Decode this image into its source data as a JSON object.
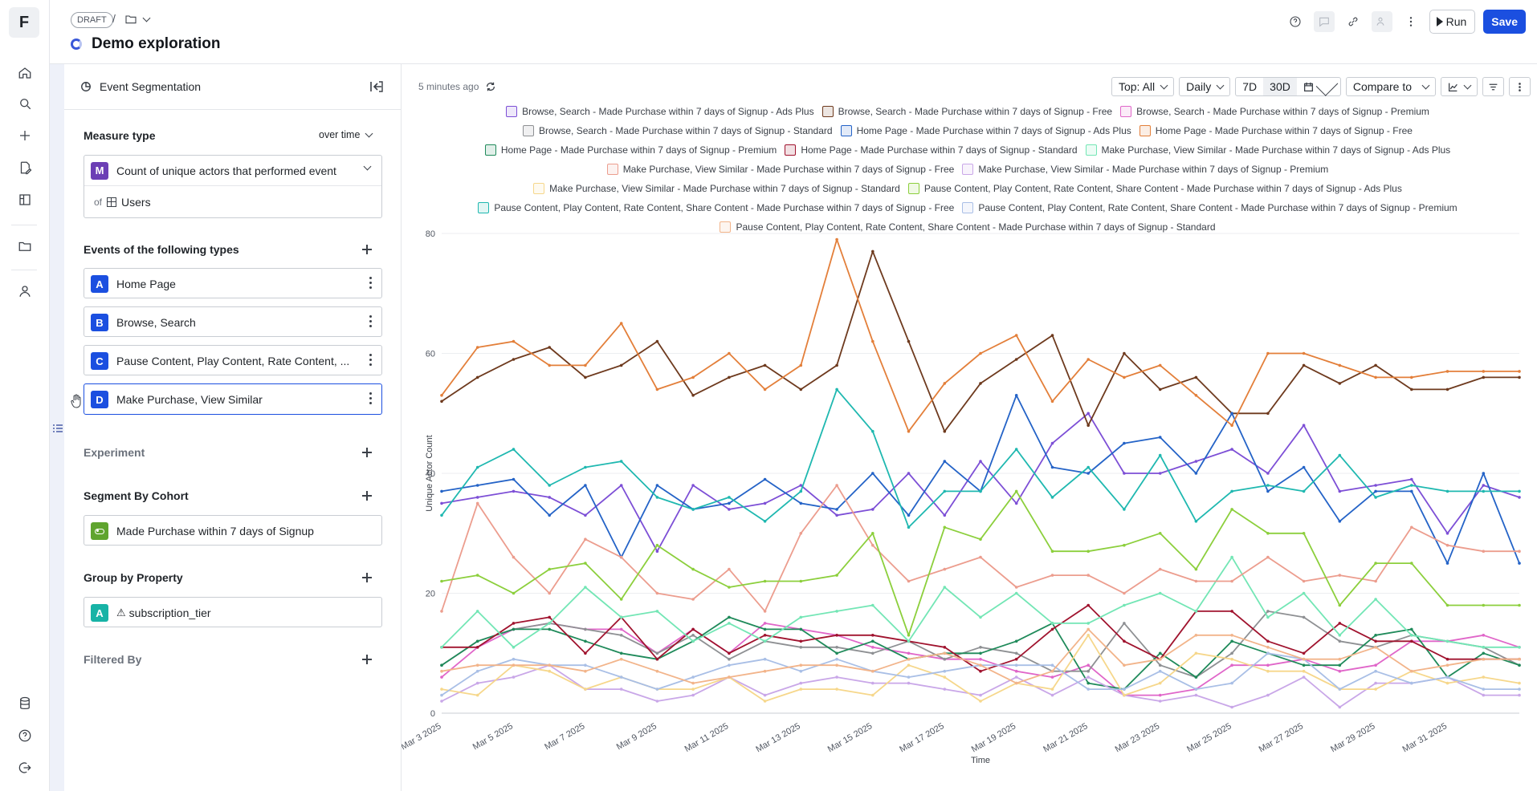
{
  "app": {
    "logo": "F"
  },
  "rail": {
    "icons": [
      "home-icon",
      "search-icon",
      "plus-icon",
      "edit-query-icon",
      "flask-icon",
      "folder-icon",
      "user-icon",
      "database-icon",
      "help-icon",
      "logout-icon"
    ]
  },
  "header": {
    "status": "DRAFT",
    "breadcrumb_sep": "/",
    "title": "Demo exploration",
    "run_label": "Run",
    "save_label": "Save"
  },
  "query": {
    "panel_title": "Event Segmentation",
    "measure_title": "Measure type",
    "measure_mode": "over time",
    "measure_badge": "M",
    "measure_value": "Count of unique actors that performed event",
    "of_label": "of",
    "of_value": "Users",
    "events_title": "Events of the following types",
    "events": [
      {
        "badge": "A",
        "label": "Home Page"
      },
      {
        "badge": "B",
        "label": "Browse, Search"
      },
      {
        "badge": "C",
        "label": "Pause Content, Play Content, Rate Content, ..."
      },
      {
        "badge": "D",
        "label": "Make Purchase, View Similar"
      }
    ],
    "experiment_title": "Experiment",
    "segment_title": "Segment By Cohort",
    "segment_value": "Made Purchase within 7 days of Signup",
    "group_title": "Group by Property",
    "group_badge": "A",
    "group_value": "subscription_tier",
    "filter_title": "Filtered By"
  },
  "chart_controls": {
    "updated": "5 minutes ago",
    "top": "Top: All",
    "interval": "Daily",
    "range_7d": "7D",
    "range_30d": "30D",
    "compare": "Compare to"
  },
  "chart_data": {
    "type": "line",
    "ylabel": "Unique Actor Count",
    "xlabel": "Time",
    "ylim": [
      0,
      80
    ],
    "yticks": [
      0,
      20,
      40,
      60,
      80
    ],
    "xticks": [
      "Mar 3 2025",
      "Mar 5 2025",
      "Mar 7 2025",
      "Mar 9 2025",
      "Mar 11 2025",
      "Mar 13 2025",
      "Mar 15 2025",
      "Mar 17 2025",
      "Mar 19 2025",
      "Mar 21 2025",
      "Mar 23 2025",
      "Mar 25 2025",
      "Mar 27 2025",
      "Mar 29 2025",
      "Mar 31 2025"
    ],
    "x_start": "2025-03-03",
    "x_end": "2025-03-31",
    "grid": true,
    "legend": "top-center",
    "series": [
      {
        "name": "Browse, Search - Made Purchase within 7 days of Signup - Ads Plus",
        "color": "#7d4fd6",
        "values": [
          35,
          36,
          37,
          36,
          33,
          38,
          27,
          38,
          34,
          35,
          38,
          33,
          34,
          40,
          33,
          42,
          35,
          45,
          50,
          40,
          40,
          42,
          44,
          40,
          48,
          37,
          38,
          39,
          30,
          38,
          36
        ]
      },
      {
        "name": "Browse, Search - Made Purchase within 7 days of Signup - Free",
        "color": "#6e3a1e",
        "values": [
          52,
          56,
          59,
          61,
          56,
          58,
          62,
          53,
          56,
          58,
          54,
          58,
          77,
          62,
          47,
          55,
          59,
          63,
          48,
          60,
          54,
          56,
          50,
          50,
          58,
          55,
          58,
          54,
          54,
          56,
          56
        ]
      },
      {
        "name": "Browse, Search - Made Purchase within 7 days of Signup - Premium",
        "color": "#e066c9",
        "values": [
          6,
          11,
          14,
          15,
          14,
          14,
          10,
          14,
          10,
          15,
          14,
          13,
          11,
          10,
          9,
          9,
          7,
          6,
          8,
          3,
          3,
          4,
          8,
          8,
          9,
          7,
          8,
          12,
          12,
          13,
          11
        ]
      },
      {
        "name": "Browse, Search - Made Purchase within 7 days of Signup - Standard",
        "color": "#8e9093",
        "values": [
          8,
          12,
          14,
          15,
          14,
          13,
          10,
          13,
          9,
          12,
          11,
          11,
          10,
          12,
          9,
          11,
          10,
          7,
          7,
          15,
          8,
          6,
          10,
          17,
          16,
          12,
          11,
          13,
          12,
          11,
          8
        ]
      },
      {
        "name": "Home Page - Made Purchase within 7 days of Signup - Ads Plus",
        "color": "#2463c7",
        "values": [
          37,
          38,
          39,
          33,
          38,
          26,
          38,
          34,
          35,
          39,
          35,
          34,
          40,
          33,
          42,
          37,
          53,
          41,
          40,
          45,
          46,
          40,
          50,
          37,
          41,
          32,
          37,
          37,
          25,
          40,
          25
        ]
      },
      {
        "name": "Home Page - Made Purchase within 7 days of Signup - Free",
        "color": "#e37f3a",
        "values": [
          53,
          61,
          62,
          58,
          58,
          65,
          54,
          56,
          60,
          54,
          58,
          79,
          62,
          47,
          55,
          60,
          63,
          52,
          59,
          56,
          58,
          53,
          48,
          60,
          60,
          58,
          56,
          56,
          57,
          57,
          57
        ]
      },
      {
        "name": "Home Page - Made Purchase within 7 days of Signup - Premium",
        "color": "#1f8a5a",
        "values": [
          8,
          12,
          14,
          14,
          12,
          10,
          9,
          12,
          16,
          14,
          14,
          10,
          12,
          9,
          10,
          10,
          12,
          15,
          5,
          4,
          10,
          6,
          12,
          10,
          8,
          8,
          13,
          14,
          6,
          10,
          8
        ]
      },
      {
        "name": "Home Page - Made Purchase within 7 days of Signup - Standard",
        "color": "#a0132e",
        "values": [
          11,
          11,
          15,
          16,
          10,
          16,
          9,
          14,
          10,
          13,
          12,
          13,
          13,
          12,
          11,
          7,
          9,
          14,
          18,
          12,
          9,
          17,
          17,
          12,
          10,
          15,
          12,
          12,
          9,
          9,
          9
        ]
      },
      {
        "name": "Make Purchase, View Similar - Made Purchase within 7 days of Signup - Ads Plus",
        "color": "#73e6b5",
        "values": [
          11,
          17,
          11,
          15,
          21,
          16,
          17,
          12,
          15,
          12,
          16,
          17,
          18,
          12,
          21,
          16,
          20,
          15,
          15,
          18,
          20,
          17,
          26,
          16,
          20,
          13,
          19,
          13,
          12,
          11,
          11
        ]
      },
      {
        "name": "Make Purchase, View Similar - Made Purchase within 7 days of Signup - Free",
        "color": "#ec9d8e",
        "values": [
          17,
          35,
          26,
          20,
          29,
          26,
          20,
          19,
          24,
          17,
          30,
          38,
          28,
          22,
          24,
          26,
          21,
          23,
          23,
          20,
          24,
          22,
          22,
          26,
          22,
          23,
          22,
          31,
          28,
          27,
          27
        ]
      },
      {
        "name": "Make Purchase, View Similar - Made Purchase within 7 days of Signup - Premium",
        "color": "#c9a7e8",
        "values": [
          2,
          5,
          6,
          8,
          4,
          4,
          2,
          3,
          6,
          3,
          5,
          6,
          5,
          5,
          4,
          3,
          6,
          3,
          6,
          3,
          2,
          3,
          1,
          3,
          6,
          1,
          5,
          5,
          6,
          3,
          3
        ]
      },
      {
        "name": "Make Purchase, View Similar - Made Purchase within 7 days of Signup - Standard",
        "color": "#f6d78b",
        "values": [
          4,
          3,
          8,
          7,
          4,
          6,
          4,
          4,
          6,
          2,
          4,
          4,
          3,
          8,
          6,
          2,
          5,
          4,
          13,
          3,
          5,
          10,
          9,
          7,
          7,
          4,
          4,
          7,
          5,
          6,
          5
        ]
      },
      {
        "name": "Pause Content, Play Content, Rate Content, Share Content - Made Purchase within 7 days of Signup - Ads Plus",
        "color": "#8ccf3c",
        "values": [
          22,
          23,
          20,
          24,
          25,
          19,
          28,
          24,
          21,
          22,
          22,
          23,
          30,
          13,
          31,
          29,
          37,
          27,
          27,
          28,
          30,
          24,
          34,
          30,
          30,
          18,
          25,
          25,
          18,
          18,
          18
        ]
      },
      {
        "name": "Pause Content, Play Content, Rate Content, Share Content - Made Purchase within 7 days of Signup - Free",
        "color": "#1fb8b0",
        "values": [
          33,
          41,
          44,
          38,
          41,
          42,
          36,
          34,
          36,
          32,
          37,
          54,
          47,
          31,
          37,
          37,
          44,
          36,
          41,
          34,
          43,
          32,
          37,
          38,
          37,
          43,
          36,
          38,
          37,
          37,
          37
        ]
      },
      {
        "name": "Pause Content, Play Content, Rate Content, Share Content - Made Purchase within 7 days of Signup - Premium",
        "color": "#a9bfe6",
        "values": [
          3,
          7,
          9,
          8,
          8,
          6,
          4,
          6,
          8,
          9,
          7,
          9,
          7,
          6,
          7,
          8,
          8,
          8,
          4,
          4,
          7,
          4,
          5,
          10,
          9,
          4,
          7,
          5,
          6,
          4,
          4
        ]
      },
      {
        "name": "Pause Content, Play Content, Rate Content, Share Content - Made Purchase within 7 days of Signup - Standard",
        "color": "#f2b48a",
        "values": [
          7,
          8,
          8,
          8,
          7,
          9,
          7,
          5,
          6,
          7,
          8,
          8,
          7,
          9,
          10,
          8,
          5,
          7,
          14,
          8,
          9,
          13,
          13,
          11,
          9,
          9,
          11,
          7,
          8,
          9,
          9
        ]
      }
    ]
  }
}
